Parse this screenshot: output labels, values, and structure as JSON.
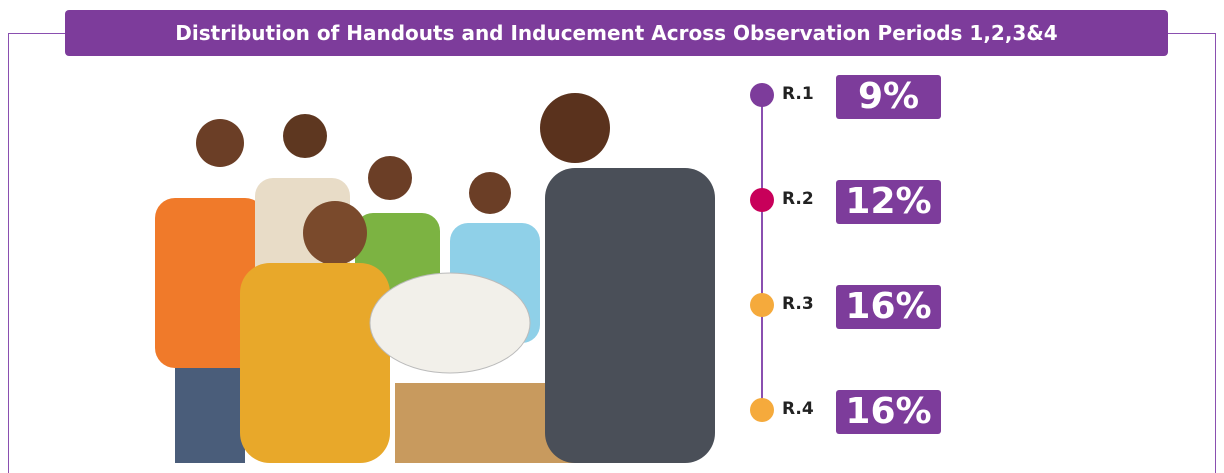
{
  "title": "Distribution of Handouts and Inducement Across Observation Periods 1,2,3&4",
  "items": [
    {
      "label": "R.1",
      "value": "9%",
      "color": "#7d3c9b"
    },
    {
      "label": "R.2",
      "value": "12%",
      "color": "#c8005a"
    },
    {
      "label": "R.3",
      "value": "16%",
      "color": "#f5aa3c"
    },
    {
      "label": "R.4",
      "value": "16%",
      "color": "#f5aa3c"
    }
  ]
}
